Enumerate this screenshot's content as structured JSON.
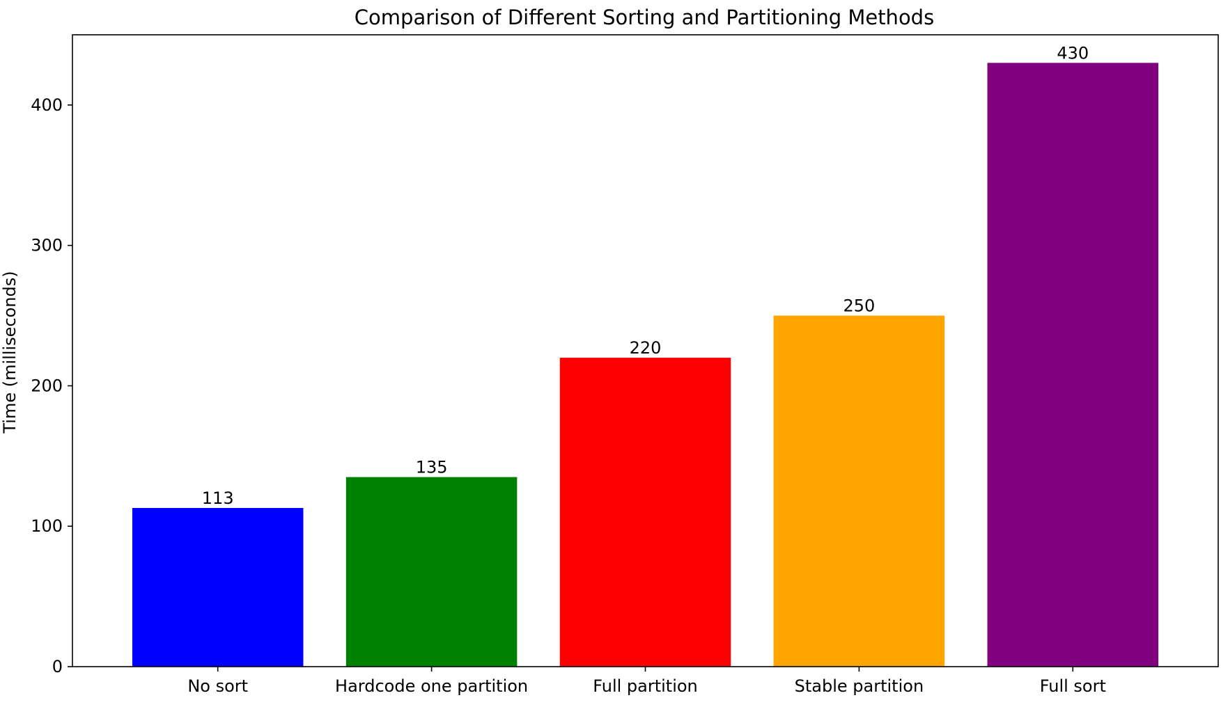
{
  "chart_data": {
    "type": "bar",
    "title": "Comparison of Different Sorting and Partitioning Methods",
    "xlabel": "",
    "ylabel": "Time (milliseconds)",
    "ylim": [
      0,
      450
    ],
    "yticks": [
      0,
      100,
      200,
      300,
      400
    ],
    "categories": [
      "No sort",
      "Hardcode one partition",
      "Full partition",
      "Stable partition",
      "Full sort"
    ],
    "values": [
      113,
      135,
      220,
      250,
      430
    ],
    "data_labels": [
      "113",
      "135",
      "220",
      "250",
      "430"
    ],
    "colors": [
      "#0000ff",
      "#008000",
      "#ff0000",
      "#ffa500",
      "#800080"
    ],
    "grid": false,
    "legend": "none"
  }
}
